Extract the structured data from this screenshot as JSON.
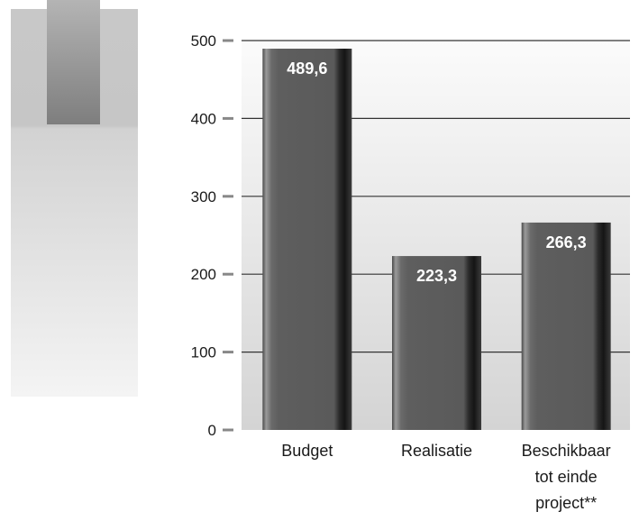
{
  "chart_data": {
    "type": "bar",
    "categories": [
      "Budget",
      "Realisatie",
      "Beschikbaar tot einde project**"
    ],
    "category_label_lines": [
      [
        "Budget"
      ],
      [
        "Realisatie"
      ],
      [
        "Beschikbaar",
        "tot einde",
        "project**"
      ]
    ],
    "values": [
      489.6,
      223.3,
      266.3
    ],
    "value_labels": [
      "489,6",
      "223,3",
      "266,3"
    ],
    "ylim": [
      0,
      500
    ],
    "yticks": [
      0,
      100,
      200,
      300,
      400,
      500
    ],
    "grid": true,
    "colors": {
      "bar": "#5e5e5e",
      "bar_highlight": "#8c8c8c",
      "bar_shadow": "#1e1e1e",
      "value_label": "#ffffff",
      "text": "#1a1a1a",
      "grid": "#333333",
      "tick": "#888888",
      "panel_light": "#f6f6f6",
      "panel_dark": "#d6d6d6",
      "decor_bar": "#8a8a8a"
    }
  }
}
